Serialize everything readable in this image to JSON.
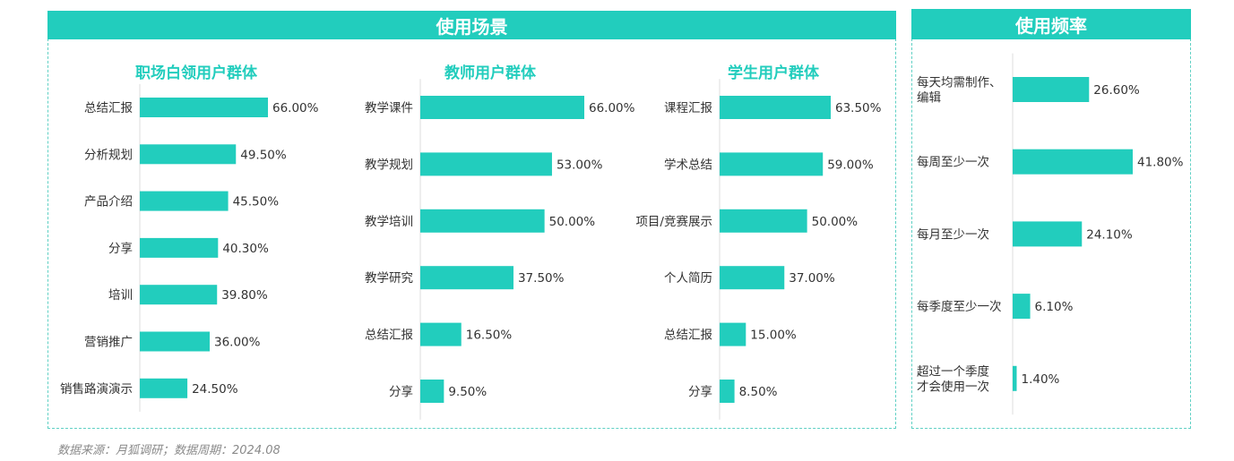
{
  "scene_header": "使用场景",
  "freq_header": "使用频率",
  "source": "数据来源：月狐调研；数据周期：2024.08",
  "colors": {
    "accent": "#22cdbd",
    "text": "#333333",
    "axis": "#dddddd"
  },
  "chart_data": [
    {
      "type": "bar",
      "title": "职场白领用户群体",
      "categories": [
        "总结汇报",
        "分析规划",
        "产品介绍",
        "分享",
        "培训",
        "营销推广",
        "销售路演演示"
      ],
      "values": [
        66.0,
        49.5,
        45.5,
        40.3,
        39.8,
        36.0,
        24.5
      ],
      "labels": [
        "66.00%",
        "49.50%",
        "45.50%",
        "40.30%",
        "39.80%",
        "36.00%",
        "24.50%"
      ],
      "orientation": "horizontal"
    },
    {
      "type": "bar",
      "title": "教师用户群体",
      "categories": [
        "教学课件",
        "教学规划",
        "教学培训",
        "教学研究",
        "总结汇报",
        "分享"
      ],
      "values": [
        66.0,
        53.0,
        50.0,
        37.5,
        16.5,
        9.5
      ],
      "labels": [
        "66.00%",
        "53.00%",
        "50.00%",
        "37.50%",
        "16.50%",
        "9.50%"
      ],
      "orientation": "horizontal"
    },
    {
      "type": "bar",
      "title": "学生用户群体",
      "categories": [
        "课程汇报",
        "学术总结",
        "项目/竞赛展示",
        "个人简历",
        "总结汇报",
        "分享"
      ],
      "values": [
        63.5,
        59.0,
        50.0,
        37.0,
        15.0,
        8.5
      ],
      "labels": [
        "63.50%",
        "59.00%",
        "50.00%",
        "37.00%",
        "15.00%",
        "8.50%"
      ],
      "orientation": "horizontal"
    },
    {
      "type": "bar",
      "title": "",
      "categories": [
        [
          "每天均需制作、",
          "编辑"
        ],
        [
          "每周至少一次"
        ],
        [
          "每月至少一次"
        ],
        [
          "每季度至少一次"
        ],
        [
          "超过一个季度",
          "才会使用一次"
        ]
      ],
      "values": [
        26.6,
        41.8,
        24.1,
        6.1,
        1.4
      ],
      "labels": [
        "26.60%",
        "41.80%",
        "24.10%",
        "6.10%",
        "1.40%"
      ],
      "orientation": "horizontal"
    }
  ]
}
